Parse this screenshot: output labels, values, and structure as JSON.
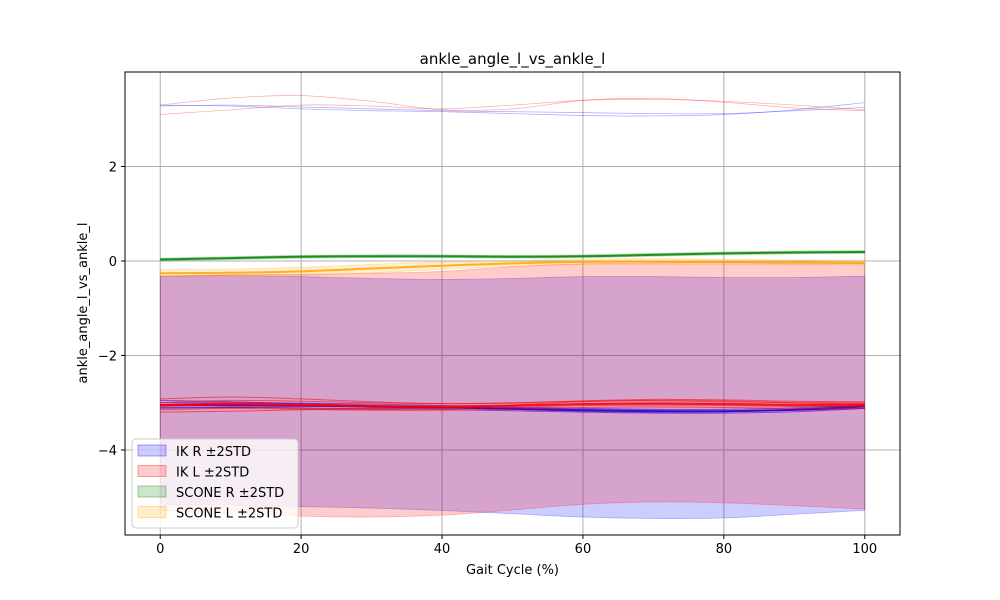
{
  "chart_data": {
    "type": "line",
    "title": "ankle_angle_l_vs_ankle_l",
    "xlabel": "Gait Cycle (%)",
    "ylabel": "ankle_angle_l_vs_ankle_l",
    "xlim": [
      -5,
      105
    ],
    "ylim": [
      -5.8,
      4.0
    ],
    "xticks": [
      0,
      20,
      40,
      60,
      80,
      100
    ],
    "yticks": [
      -4,
      -2,
      0,
      2
    ],
    "xtick_labels": [
      "0",
      "20",
      "40",
      "60",
      "80",
      "100"
    ],
    "ytick_labels": [
      "−4",
      "−2",
      "0",
      "2"
    ],
    "grid": true,
    "legend_position": "lower-left",
    "x": [
      0,
      10,
      20,
      30,
      40,
      50,
      60,
      70,
      80,
      90,
      100
    ],
    "series": [
      {
        "name": "IK R ±2STD",
        "color": "#0000ff",
        "mean": [
          -3.05,
          -3.05,
          -3.06,
          -3.08,
          -3.1,
          -3.13,
          -3.16,
          -3.18,
          -3.18,
          -3.15,
          -3.08
        ],
        "upper": [
          -0.32,
          -0.31,
          -0.33,
          -0.37,
          -0.39,
          -0.37,
          -0.33,
          -0.33,
          -0.35,
          -0.35,
          -0.32
        ],
        "lower": [
          -5.15,
          -5.17,
          -5.2,
          -5.23,
          -5.28,
          -5.35,
          -5.42,
          -5.45,
          -5.44,
          -5.36,
          -5.28
        ],
        "mean_lines": [
          [
            -3.0,
            -3.0,
            -3.01,
            -3.03,
            -3.06,
            -3.09,
            -3.12,
            -3.14,
            -3.14,
            -3.11,
            -3.04
          ],
          [
            -3.05,
            -3.05,
            -3.06,
            -3.08,
            -3.1,
            -3.13,
            -3.16,
            -3.18,
            -3.18,
            -3.15,
            -3.08
          ],
          [
            -3.1,
            -3.1,
            -3.11,
            -3.13,
            -3.14,
            -3.17,
            -3.2,
            -3.22,
            -3.22,
            -3.19,
            -3.12
          ],
          [
            -2.95,
            -2.98,
            -3.02,
            -3.06,
            -3.1,
            -3.14,
            -3.18,
            -3.2,
            -3.19,
            -3.14,
            -3.05
          ],
          [
            -3.12,
            -3.1,
            -3.08,
            -3.08,
            -3.09,
            -3.11,
            -3.14,
            -3.16,
            -3.17,
            -3.16,
            -3.12
          ]
        ],
        "outliers": [
          [
            3.3,
            3.28,
            3.22,
            3.18,
            3.16,
            3.12,
            3.08,
            3.07,
            3.1,
            3.2,
            3.35
          ],
          [
            3.28,
            3.3,
            3.26,
            3.22,
            3.18,
            3.16,
            3.14,
            3.12,
            3.12,
            3.18,
            3.25
          ]
        ]
      },
      {
        "name": "IK L ±2STD",
        "color": "#ff0000",
        "mean": [
          -3.05,
          -3.02,
          -3.04,
          -3.07,
          -3.08,
          -3.06,
          -3.03,
          -3.02,
          -3.03,
          -3.05,
          -3.05
        ],
        "upper": [
          -0.32,
          -0.29,
          -0.28,
          -0.26,
          -0.22,
          -0.12,
          -0.06,
          -0.04,
          -0.03,
          -0.06,
          -0.05
        ],
        "lower": [
          -5.28,
          -5.34,
          -5.4,
          -5.42,
          -5.38,
          -5.27,
          -5.15,
          -5.1,
          -5.12,
          -5.18,
          -5.25
        ],
        "mean_lines": [
          [
            -3.0,
            -2.95,
            -2.97,
            -3.0,
            -3.02,
            -3.0,
            -2.97,
            -2.96,
            -2.98,
            -3.0,
            -3.0
          ],
          [
            -3.08,
            -3.05,
            -3.07,
            -3.1,
            -3.12,
            -3.1,
            -3.06,
            -3.05,
            -3.06,
            -3.08,
            -3.08
          ],
          [
            -3.15,
            -3.12,
            -3.14,
            -3.16,
            -3.16,
            -3.14,
            -3.1,
            -3.09,
            -3.1,
            -3.12,
            -3.12
          ],
          [
            -2.92,
            -2.88,
            -2.92,
            -2.98,
            -3.02,
            -3.01,
            -2.96,
            -2.93,
            -2.94,
            -2.97,
            -2.98
          ],
          [
            -3.2,
            -3.18,
            -3.15,
            -3.12,
            -3.1,
            -3.06,
            -3.02,
            -3.0,
            -3.01,
            -3.03,
            -3.02
          ],
          [
            -3.05,
            -3.08,
            -3.12,
            -3.14,
            -3.12,
            -3.05,
            -2.98,
            -2.95,
            -2.96,
            -3.0,
            -3.03
          ]
        ],
        "outliers": [
          [
            3.1,
            3.2,
            3.3,
            3.28,
            3.22,
            3.3,
            3.4,
            3.42,
            3.38,
            3.3,
            3.2
          ],
          [
            3.3,
            3.45,
            3.5,
            3.38,
            3.2,
            3.22,
            3.4,
            3.44,
            3.36,
            3.24,
            3.18
          ]
        ]
      },
      {
        "name": "SCONE R ±2STD",
        "color": "#008000",
        "mean": [
          0.03,
          0.06,
          0.09,
          0.1,
          0.1,
          0.09,
          0.1,
          0.13,
          0.16,
          0.18,
          0.19
        ],
        "upper": [
          0.06,
          0.09,
          0.12,
          0.13,
          0.13,
          0.12,
          0.13,
          0.16,
          0.19,
          0.21,
          0.22
        ],
        "lower": [
          0.0,
          0.03,
          0.06,
          0.07,
          0.07,
          0.06,
          0.07,
          0.1,
          0.13,
          0.15,
          0.16
        ]
      },
      {
        "name": "SCONE L ±2STD",
        "color": "#ffa500",
        "mean": [
          -0.26,
          -0.25,
          -0.22,
          -0.16,
          -0.1,
          -0.05,
          -0.02,
          -0.01,
          -0.02,
          -0.03,
          -0.04
        ],
        "upper": [
          -0.18,
          -0.17,
          -0.13,
          -0.07,
          -0.02,
          0.01,
          0.04,
          0.05,
          0.04,
          0.02,
          0.01
        ],
        "lower": [
          -0.34,
          -0.33,
          -0.31,
          -0.25,
          -0.18,
          -0.11,
          -0.08,
          -0.07,
          -0.08,
          -0.08,
          -0.09
        ]
      }
    ]
  }
}
